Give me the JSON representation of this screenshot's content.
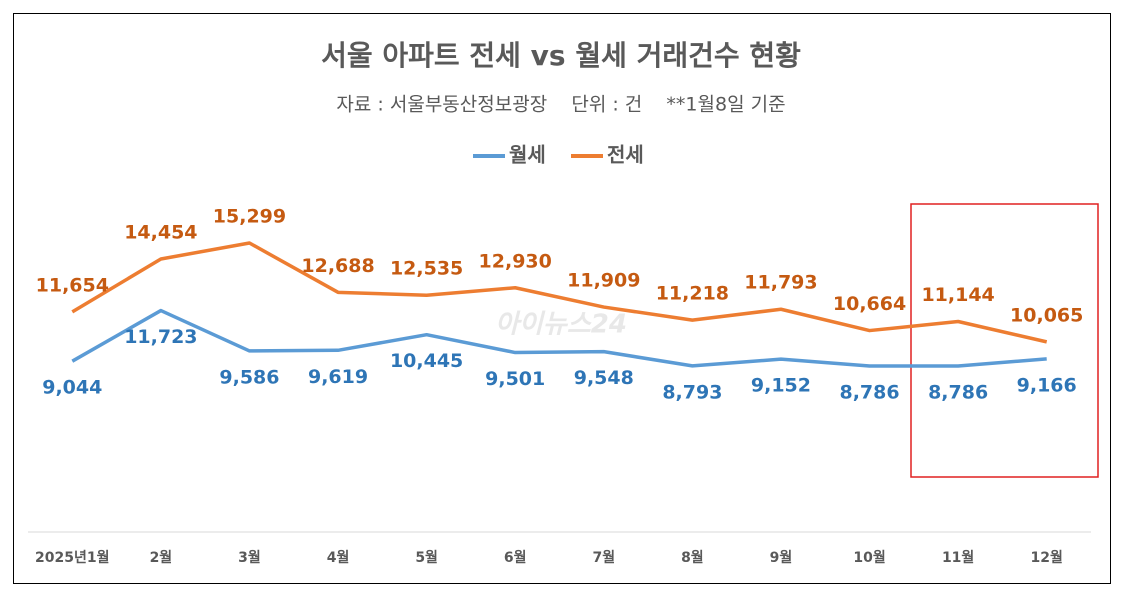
{
  "chart_data": {
    "type": "line",
    "title": "서울 아파트 전세 vs 월세 거래건수 현황",
    "subtitle": "자료 : 서울부동산정보광장    단위 : 건    **1월8일 기준",
    "watermark": "아이뉴스24",
    "categories": [
      "2025년1월",
      "2월",
      "3월",
      "4월",
      "5월",
      "6월",
      "7월",
      "8월",
      "9월",
      "10월",
      "11월",
      "12월"
    ],
    "series": [
      {
        "name": "월세",
        "color": "#5b9bd5",
        "label_color": "#2e75b6",
        "values": [
          9044,
          11723,
          9586,
          9619,
          10445,
          9501,
          9548,
          8793,
          9152,
          8786,
          8786,
          9166
        ],
        "value_labels": [
          "9,044",
          "11,723",
          "9,586",
          "9,619",
          "10,445",
          "9,501",
          "9,548",
          "8,793",
          "9,152",
          "8,786",
          "8,786",
          "9,166"
        ]
      },
      {
        "name": "전세",
        "color": "#ed7d31",
        "label_color": "#c55a11",
        "values": [
          11654,
          14454,
          15299,
          12688,
          12535,
          12930,
          11909,
          11218,
          11793,
          10664,
          11144,
          10065
        ],
        "value_labels": [
          "11,654",
          "14,454",
          "15,299",
          "12,688",
          "12,535",
          "12,930",
          "11,909",
          "11,218",
          "11,793",
          "10,664",
          "11,144",
          "10,065"
        ]
      }
    ],
    "ylim": [
      0,
      18000
    ],
    "grid": false
  }
}
